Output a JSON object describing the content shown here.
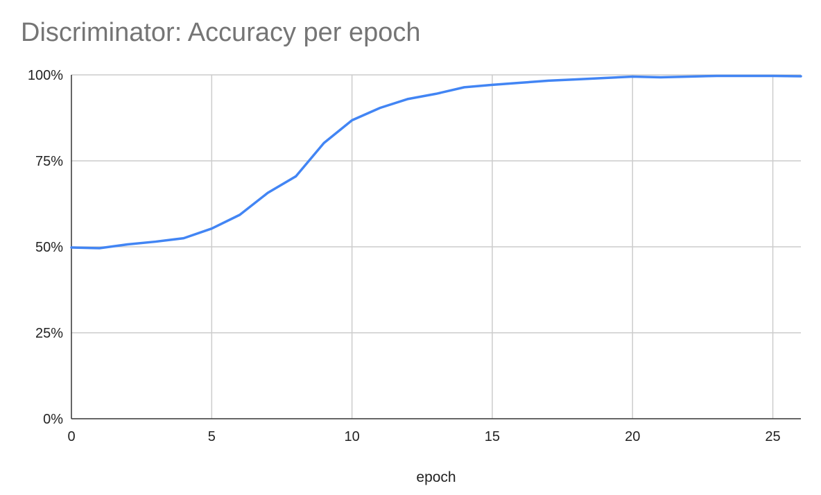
{
  "colors": {
    "series": "#4285f4",
    "grid": "#cccccc",
    "axis": "#333333",
    "title": "#757575",
    "text": "#222222"
  },
  "chart_data": {
    "type": "line",
    "title": "Discriminator: Accuracy per epoch",
    "xlabel": "epoch",
    "ylabel": "",
    "xlim": [
      0,
      26
    ],
    "ylim": [
      0,
      100
    ],
    "x_ticks": [
      0,
      5,
      10,
      15,
      20,
      25
    ],
    "x_tick_labels": [
      "0",
      "5",
      "10",
      "15",
      "20",
      "25"
    ],
    "y_ticks": [
      0,
      25,
      50,
      75,
      100
    ],
    "y_tick_labels": [
      "0%",
      "25%",
      "50%",
      "75%",
      "100%"
    ],
    "grid": true,
    "legend": "none",
    "series": [
      {
        "x": [
          0,
          1,
          2,
          3,
          4,
          5,
          6,
          7,
          8,
          9,
          10,
          11,
          12,
          13,
          14,
          15,
          16,
          17,
          18,
          19,
          20,
          21,
          22,
          23,
          24,
          25,
          26
        ],
        "values": [
          49.8,
          49.6,
          50.7,
          51.5,
          52.5,
          55.3,
          59.3,
          65.7,
          70.5,
          80.2,
          86.8,
          90.4,
          93.0,
          94.5,
          96.4,
          97.1,
          97.7,
          98.3,
          98.7,
          99.1,
          99.5,
          99.3,
          99.5,
          99.7,
          99.7,
          99.7,
          99.6
        ]
      }
    ]
  }
}
